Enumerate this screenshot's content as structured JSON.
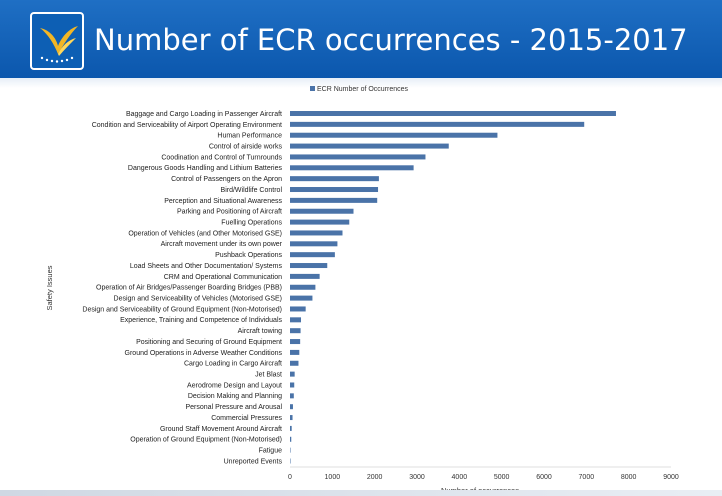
{
  "header": {
    "title": "Number of ECR occurrences - 2015-2017",
    "logo_icon": "bird-stars-logo-icon"
  },
  "colors": {
    "header_blue": "#0b57ad",
    "bar_blue": "#4a73a8"
  },
  "chart_data": {
    "type": "bar",
    "orientation": "horizontal",
    "title": "",
    "xlabel": "Number of occurrences",
    "ylabel": "Safety Issues",
    "xlim": [
      0,
      9000
    ],
    "xticks": [
      0,
      1000,
      2000,
      3000,
      4000,
      5000,
      6000,
      7000,
      8000,
      9000
    ],
    "grid": false,
    "legend_position": "top",
    "series": [
      {
        "name": "ECR Number of Occurrences",
        "color": "#4a73a8",
        "categories": [
          "Baggage and Cargo Loading in Passenger Aircraft",
          "Condition and Serviceability of Airport Operating Environment",
          "Human Performance",
          "Control of airside works",
          "Coodination and Control of  Turnrounds",
          "Dangerous Goods Handling and Lithium Batteries",
          "Control of Passengers on the Apron",
          "Bird/Wildlife Control",
          "Perception and Situational Awareness",
          "Parking and Positioning of Aircraft",
          "Fuelling Operations",
          "Operation of Vehicles (and Other Motorised GSE)",
          "Aircraft movement under its own power",
          "Pushback Operations",
          "Load Sheets and Other Documentation/ Systems",
          "CRM and Operational Communication",
          "Operation of Air Bridges/Passenger Boarding Bridges (PBB)",
          "Design and Serviceability of Vehicles (Motorised GSE)",
          "Design and Serviceability of Ground Equipment (Non-Motorised)",
          "Experience, Training and Competence of Individuals",
          "Aircraft towing",
          "Positioning and Securing of Ground Equipment",
          "Ground Operations in Adverse Weather Conditions",
          "Cargo Loading in Cargo Aircraft",
          "Jet Blast",
          "Aerodrome Design and Layout",
          "Decision Making and Planning",
          "Personal Pressure and Arousal",
          "Commercial Pressures",
          "Ground Staff Movement Around Aircraft",
          "Operation of Ground Equipment (Non-Motorised)",
          "Fatigue",
          "Unreported Events"
        ],
        "values": [
          7700,
          6950,
          4900,
          3750,
          3200,
          2920,
          2100,
          2080,
          2060,
          1500,
          1400,
          1240,
          1120,
          1060,
          880,
          700,
          600,
          530,
          370,
          260,
          250,
          240,
          220,
          200,
          110,
          100,
          90,
          70,
          60,
          40,
          30,
          10,
          5
        ]
      }
    ]
  }
}
